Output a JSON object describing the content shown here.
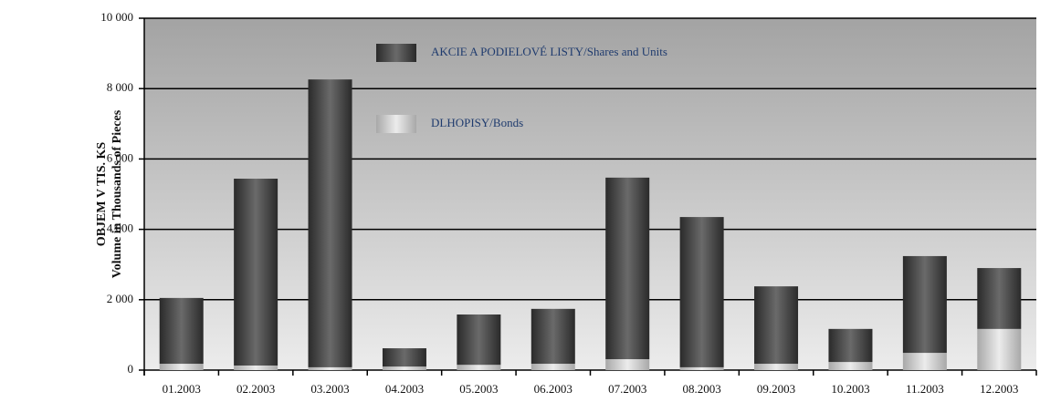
{
  "chart_data": {
    "type": "stacked_bar",
    "ylabel": [
      "OBJEM V TIS. KS",
      "Volume in Thousands of Pieces"
    ],
    "categories": [
      "01.2003",
      "02.2003",
      "03.2003",
      "04.2003",
      "05.2003",
      "06.2003",
      "07.2003",
      "08.2003",
      "09.2003",
      "10.2003",
      "11.2003",
      "12.2003"
    ],
    "series": [
      {
        "name": "DLHOPISY/Bonds",
        "color": "#c8c8c8",
        "values": [
          180,
          130,
          80,
          100,
          150,
          180,
          310,
          80,
          180,
          230,
          490,
          1170
        ]
      },
      {
        "name": "AKCIE A PODIELOVÉ LISTY/Shares and Units",
        "color": "#4a4a4a",
        "values": [
          1870,
          5310,
          8180,
          520,
          1430,
          1560,
          5160,
          4270,
          2200,
          940,
          2750,
          1730
        ]
      }
    ],
    "ylim": [
      0,
      10000
    ],
    "yticks": [
      0,
      {
        "value": 2000,
        "label": "2 000"
      },
      {
        "value": 4000,
        "label": "4 000"
      },
      {
        "value": 6000,
        "label": "6 000"
      },
      {
        "value": 8000,
        "label": "8 000"
      },
      {
        "value": 10000,
        "label": "10 000"
      }
    ],
    "grid": true
  }
}
